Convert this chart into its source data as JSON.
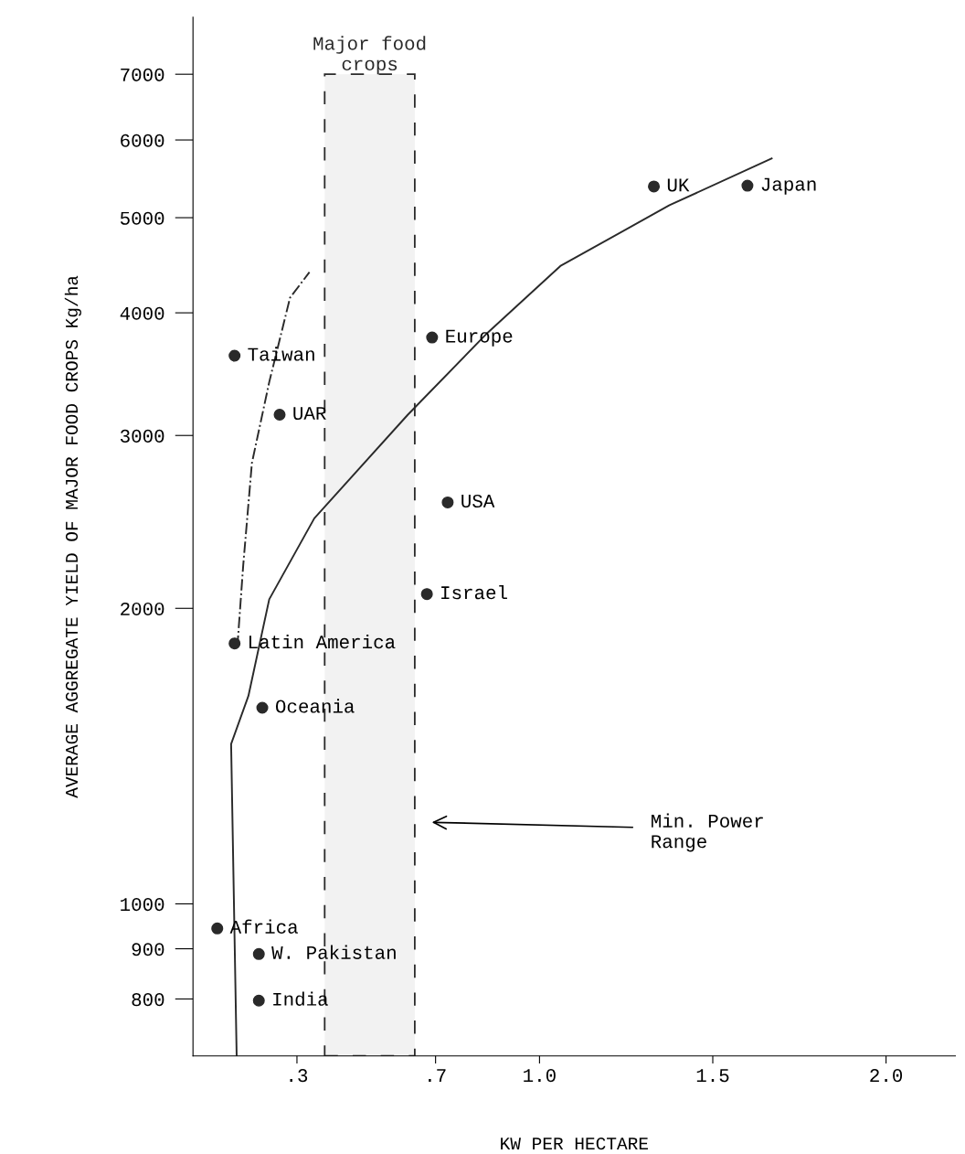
{
  "chart_data": {
    "type": "scatter",
    "xlabel": "KW PER HECTARE",
    "ylabel": "AVERAGE AGGREGATE YIELD OF MAJOR FOOD CROPS Kg/ha",
    "xlim": [
      0,
      2.2
    ],
    "log": "y",
    "xticks": [
      {
        "value": 0.3,
        "label": ".3"
      },
      {
        "value": 0.7,
        "label": ".7"
      },
      {
        "value": 1.0,
        "label": "1.0"
      },
      1.5,
      {
        "value": 2.0,
        "label": "2.0"
      }
    ],
    "ylim": [
      700,
      8000
    ],
    "yticks": [
      800,
      900,
      1000,
      2000,
      3000,
      4000,
      5000,
      6000,
      7000
    ],
    "grid": false,
    "series": [
      {
        "color": "#2a2a2a",
        "marker": "circle",
        "x": [
          1.33,
          1.6,
          0.69,
          0.12,
          0.25,
          0.735,
          0.675,
          0.12,
          0.2,
          0.07,
          0.19,
          0.19
        ],
        "values": [
          5380,
          5390,
          3775,
          3617,
          3150,
          2564,
          2068,
          1842,
          1584,
          944,
          889,
          797
        ]
      },
      {
        "type": "line",
        "color": "#2a2a2a",
        "line_style": "solid",
        "marker": "none",
        "x": [
          0.126,
          0.11,
          0.16,
          0.22,
          0.35,
          0.62,
          0.85,
          1.06,
          1.375,
          1.67
        ],
        "values": [
          700,
          1455,
          1629,
          2043,
          2470,
          3150,
          3817,
          4464,
          5148,
          5746
        ]
      },
      {
        "type": "line",
        "color": "#2a2a2a",
        "line_style": "dashdot",
        "marker": "none",
        "x": [
          0.128,
          0.145,
          0.17,
          0.22,
          0.28,
          0.336
        ],
        "values": [
          1827,
          2214,
          2812,
          3400,
          4144,
          4400
        ]
      }
    ],
    "bands": [
      {
        "axis": "x",
        "from": 0.38,
        "to": 0.64,
        "label": "Major food\ncrops",
        "color": "#2a2a2a"
      }
    ],
    "annotations": [
      {
        "text": "UK",
        "x": 1.33,
        "y": 5380
      },
      {
        "text": "Japan",
        "x": 1.6,
        "y": 5390
      },
      {
        "text": "Europe",
        "x": 0.69,
        "y": 3775
      },
      {
        "text": "Taiwan",
        "x": 0.12,
        "y": 3617
      },
      {
        "text": "UAR",
        "x": 0.25,
        "y": 3150
      },
      {
        "text": "USA",
        "x": 0.735,
        "y": 2564
      },
      {
        "text": "Israel",
        "x": 0.675,
        "y": 2068
      },
      {
        "text": "Latin America",
        "x": 0.12,
        "y": 1842
      },
      {
        "text": "Oceania",
        "x": 0.2,
        "y": 1584
      },
      {
        "text": "Africa",
        "x": 0.07,
        "y": 944
      },
      {
        "text": "W. Pakistan",
        "x": 0.19,
        "y": 889
      },
      {
        "text": "India",
        "x": 0.19,
        "y": 797
      },
      "Min. Power\nRange"
    ]
  }
}
